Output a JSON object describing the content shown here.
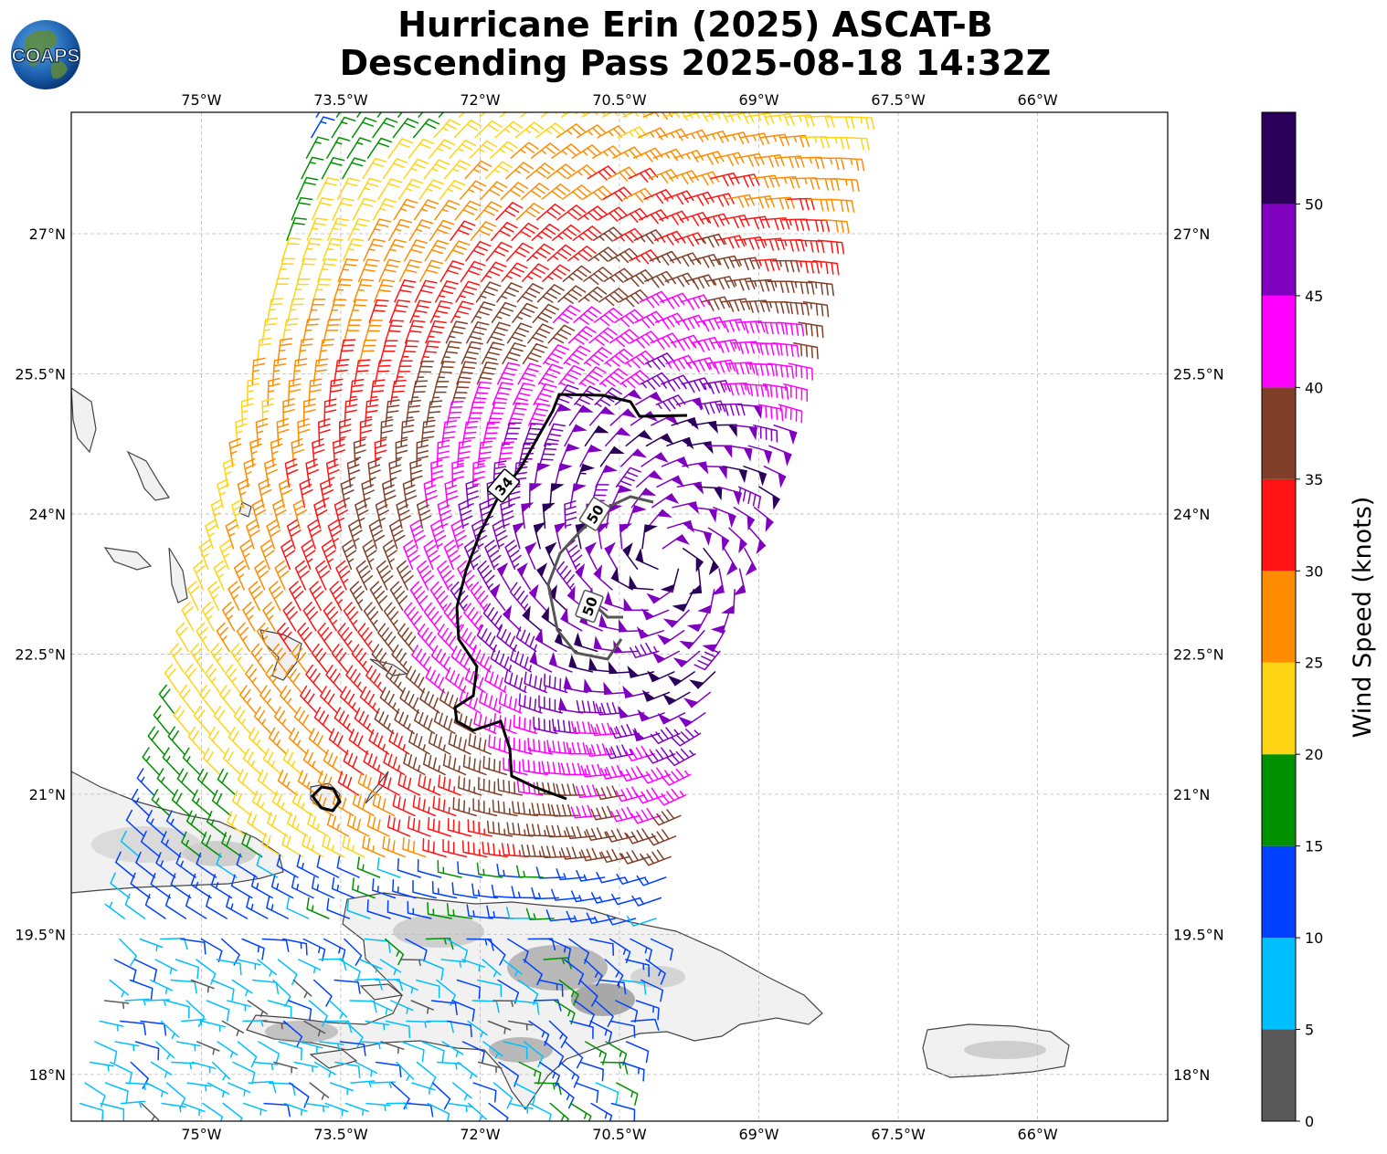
{
  "title": {
    "line1": "Hurricane Erin (2025) ASCAT-B",
    "line2": "Descending Pass 2025-08-18 14:32Z"
  },
  "logo_text": "COAPS",
  "map": {
    "lon_range": [
      -76.4,
      -64.6
    ],
    "lat_range": [
      17.5,
      28.3
    ],
    "lon_ticks": [
      "75°W",
      "73.5°W",
      "72°W",
      "70.5°W",
      "69°W",
      "67.5°W",
      "66°W"
    ],
    "lat_ticks": [
      "27°N",
      "25.5°N",
      "24°N",
      "22.5°N",
      "21°N",
      "19.5°N",
      "18°N"
    ],
    "grid": true,
    "storm_center": {
      "lon": -70.0,
      "lat": 23.5
    },
    "contours": [
      {
        "label": "34",
        "color": "#000000"
      },
      {
        "label": "50",
        "color": "#555555"
      },
      {
        "label": "50",
        "color": "#555555"
      }
    ]
  },
  "colorbar": {
    "label": "Wind Speed (knots)",
    "ticks": [
      "0",
      "5",
      "10",
      "15",
      "20",
      "25",
      "30",
      "35",
      "40",
      "45",
      "50"
    ],
    "colors": [
      "#595959",
      "#00bfff",
      "#0040ff",
      "#009000",
      "#ffd414",
      "#ff8c00",
      "#ff1414",
      "#7f3f28",
      "#ff00ff",
      "#8000c0",
      "#2a005a"
    ]
  },
  "colors": {
    "land": "#ffffff",
    "coastline": "#444444",
    "grid": "#bbbbbb"
  }
}
